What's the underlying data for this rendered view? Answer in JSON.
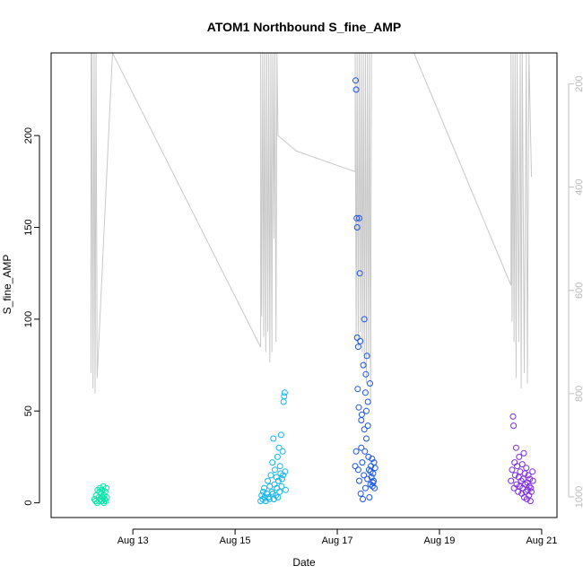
{
  "chart_data": {
    "type": "scatter",
    "title": "ATOM1 Northbound S_fine_AMP",
    "xlabel": "Date",
    "ylabel": "S_fine_AMP",
    "x_ticks": [
      "Aug 13",
      "Aug 15",
      "Aug 17",
      "Aug 19",
      "Aug 21"
    ],
    "x_tick_days": [
      13,
      15,
      17,
      19,
      21
    ],
    "xlim_days": [
      11.4,
      21.3
    ],
    "ylim": [
      -8,
      245
    ],
    "y_ticks": [
      0,
      50,
      100,
      150,
      200
    ],
    "right_axis": {
      "ticks": [
        200,
        400,
        600,
        800,
        1000
      ],
      "ylim_reversed": [
        1040,
        140
      ],
      "color": "#bebebe"
    },
    "grid": false,
    "legend": "none",
    "point_style": "open-circle",
    "series": [
      {
        "color": "#00e6a8",
        "points": [
          [
            12.25,
            2
          ],
          [
            12.27,
            1
          ],
          [
            12.28,
            4
          ],
          [
            12.3,
            0
          ],
          [
            12.31,
            7
          ],
          [
            12.33,
            3
          ],
          [
            12.34,
            1
          ],
          [
            12.35,
            6
          ],
          [
            12.36,
            8
          ],
          [
            12.37,
            2
          ],
          [
            12.38,
            5
          ],
          [
            12.39,
            1
          ],
          [
            12.4,
            7
          ],
          [
            12.41,
            3
          ],
          [
            12.42,
            9
          ],
          [
            12.43,
            0
          ],
          [
            12.44,
            4
          ],
          [
            12.45,
            2
          ],
          [
            12.46,
            6
          ],
          [
            12.47,
            1
          ],
          [
            12.48,
            8
          ],
          [
            12.49,
            3
          ]
        ]
      },
      {
        "color": "#12b4f0",
        "points": [
          [
            15.5,
            1
          ],
          [
            15.52,
            4
          ],
          [
            15.54,
            2
          ],
          [
            15.55,
            6
          ],
          [
            15.57,
            8
          ],
          [
            15.58,
            3
          ],
          [
            15.6,
            1
          ],
          [
            15.62,
            5
          ],
          [
            15.64,
            12
          ],
          [
            15.65,
            3
          ],
          [
            15.67,
            2
          ],
          [
            15.68,
            9
          ],
          [
            15.7,
            15
          ],
          [
            15.72,
            6
          ],
          [
            15.73,
            22
          ],
          [
            15.74,
            5
          ],
          [
            15.75,
            35
          ],
          [
            15.76,
            2
          ],
          [
            15.77,
            10
          ],
          [
            15.78,
            18
          ],
          [
            15.8,
            4
          ],
          [
            15.81,
            14
          ],
          [
            15.82,
            8
          ],
          [
            15.83,
            25
          ],
          [
            15.84,
            3
          ],
          [
            15.85,
            12
          ],
          [
            15.86,
            30
          ],
          [
            15.87,
            6
          ],
          [
            15.88,
            20
          ],
          [
            15.89,
            16
          ],
          [
            15.9,
            37
          ],
          [
            15.91,
            9
          ],
          [
            15.92,
            13
          ],
          [
            15.93,
            28
          ],
          [
            15.94,
            15
          ],
          [
            15.95,
            55
          ],
          [
            15.96,
            58
          ],
          [
            15.97,
            60
          ],
          [
            15.98,
            17
          ],
          [
            15.99,
            7
          ]
        ]
      },
      {
        "color": "#1a55e6",
        "points": [
          [
            17.35,
            20
          ],
          [
            17.36,
            230
          ],
          [
            17.37,
            225
          ],
          [
            17.38,
            155
          ],
          [
            17.39,
            150
          ],
          [
            17.4,
            62
          ],
          [
            17.41,
            18
          ],
          [
            17.42,
            52
          ],
          [
            17.43,
            12
          ],
          [
            17.44,
            125
          ],
          [
            17.45,
            88
          ],
          [
            17.46,
            5
          ],
          [
            17.47,
            30
          ],
          [
            17.48,
            48
          ],
          [
            17.49,
            22
          ],
          [
            17.5,
            2
          ],
          [
            17.51,
            75
          ],
          [
            17.52,
            15
          ],
          [
            17.53,
            40
          ],
          [
            17.54,
            28
          ],
          [
            17.55,
            8
          ],
          [
            17.56,
            70
          ],
          [
            17.57,
            35
          ],
          [
            17.58,
            80
          ],
          [
            17.59,
            13
          ],
          [
            17.6,
            55
          ],
          [
            17.61,
            25
          ],
          [
            17.62,
            18
          ],
          [
            17.63,
            3
          ],
          [
            17.64,
            65
          ],
          [
            17.65,
            10
          ],
          [
            17.66,
            20
          ],
          [
            17.67,
            14
          ],
          [
            17.68,
            24
          ],
          [
            17.69,
            9
          ],
          [
            17.7,
            16
          ],
          [
            17.71,
            12
          ],
          [
            17.72,
            22
          ],
          [
            17.73,
            8
          ],
          [
            17.74,
            19
          ],
          [
            17.39,
            90
          ],
          [
            17.41,
            85
          ],
          [
            17.47,
            45
          ],
          [
            17.53,
            100
          ],
          [
            17.55,
            60
          ],
          [
            17.57,
            50
          ],
          [
            17.43,
            155
          ],
          [
            17.6,
            42
          ],
          [
            17.37,
            28
          ],
          [
            17.65,
            17
          ],
          [
            17.7,
            11
          ]
        ]
      },
      {
        "color": "#7b2ae6",
        "points": [
          [
            20.4,
            12
          ],
          [
            20.42,
            18
          ],
          [
            20.44,
            47
          ],
          [
            20.45,
            42
          ],
          [
            20.46,
            8
          ],
          [
            20.47,
            22
          ],
          [
            20.48,
            15
          ],
          [
            20.5,
            30
          ],
          [
            20.51,
            10
          ],
          [
            20.52,
            20
          ],
          [
            20.54,
            6
          ],
          [
            20.55,
            14
          ],
          [
            20.56,
            25
          ],
          [
            20.57,
            9
          ],
          [
            20.58,
            17
          ],
          [
            20.6,
            12
          ],
          [
            20.61,
            5
          ],
          [
            20.62,
            21
          ],
          [
            20.63,
            8
          ],
          [
            20.64,
            13
          ],
          [
            20.65,
            27
          ],
          [
            20.66,
            3
          ],
          [
            20.67,
            16
          ],
          [
            20.68,
            10
          ],
          [
            20.69,
            6
          ],
          [
            20.7,
            19
          ],
          [
            20.71,
            2
          ],
          [
            20.72,
            11
          ],
          [
            20.73,
            7
          ],
          [
            20.74,
            15
          ],
          [
            20.75,
            4
          ],
          [
            20.76,
            9
          ],
          [
            20.77,
            13
          ],
          [
            20.78,
            1
          ],
          [
            20.79,
            8
          ],
          [
            20.8,
            6
          ],
          [
            20.82,
            17
          ],
          [
            20.83,
            12
          ]
        ]
      }
    ],
    "line_series": {
      "color": "#c8c8c8",
      "axis": "right",
      "points": [
        [
          12.18,
          140
        ],
        [
          12.18,
          760
        ],
        [
          12.2,
          140
        ],
        [
          12.22,
          790
        ],
        [
          12.24,
          140
        ],
        [
          12.26,
          800
        ],
        [
          12.28,
          140
        ],
        [
          12.3,
          770
        ],
        [
          12.6,
          140
        ],
        [
          15.5,
          710
        ],
        [
          15.5,
          140
        ],
        [
          15.52,
          650
        ],
        [
          15.54,
          140
        ],
        [
          15.56,
          690
        ],
        [
          15.58,
          140
        ],
        [
          15.6,
          720
        ],
        [
          15.62,
          140
        ],
        [
          15.64,
          680
        ],
        [
          15.66,
          140
        ],
        [
          15.68,
          740
        ],
        [
          15.7,
          140
        ],
        [
          15.72,
          720
        ],
        [
          15.74,
          140
        ],
        [
          15.76,
          500
        ],
        [
          15.78,
          140
        ],
        [
          15.8,
          700
        ],
        [
          15.82,
          140
        ],
        [
          15.84,
          300
        ],
        [
          16.2,
          330
        ],
        [
          17.35,
          370
        ],
        [
          17.35,
          140
        ],
        [
          17.37,
          700
        ],
        [
          17.39,
          140
        ],
        [
          17.41,
          710
        ],
        [
          17.43,
          140
        ],
        [
          17.45,
          680
        ],
        [
          17.47,
          140
        ],
        [
          17.49,
          720
        ],
        [
          17.51,
          140
        ],
        [
          17.53,
          750
        ],
        [
          17.55,
          140
        ],
        [
          17.57,
          780
        ],
        [
          17.59,
          140
        ],
        [
          17.61,
          730
        ],
        [
          17.63,
          140
        ],
        [
          17.65,
          820
        ],
        [
          17.67,
          140
        ],
        [
          17.7,
          140
        ],
        [
          18.5,
          140
        ],
        [
          20.4,
          590
        ],
        [
          20.4,
          140
        ],
        [
          20.42,
          660
        ],
        [
          20.44,
          140
        ],
        [
          20.46,
          700
        ],
        [
          20.48,
          140
        ],
        [
          20.5,
          770
        ],
        [
          20.52,
          140
        ],
        [
          20.55,
          700
        ],
        [
          20.58,
          140
        ],
        [
          20.6,
          790
        ],
        [
          20.62,
          140
        ],
        [
          20.66,
          760
        ],
        [
          20.7,
          140
        ],
        [
          20.72,
          780
        ],
        [
          20.75,
          140
        ],
        [
          20.8,
          380
        ]
      ]
    }
  }
}
